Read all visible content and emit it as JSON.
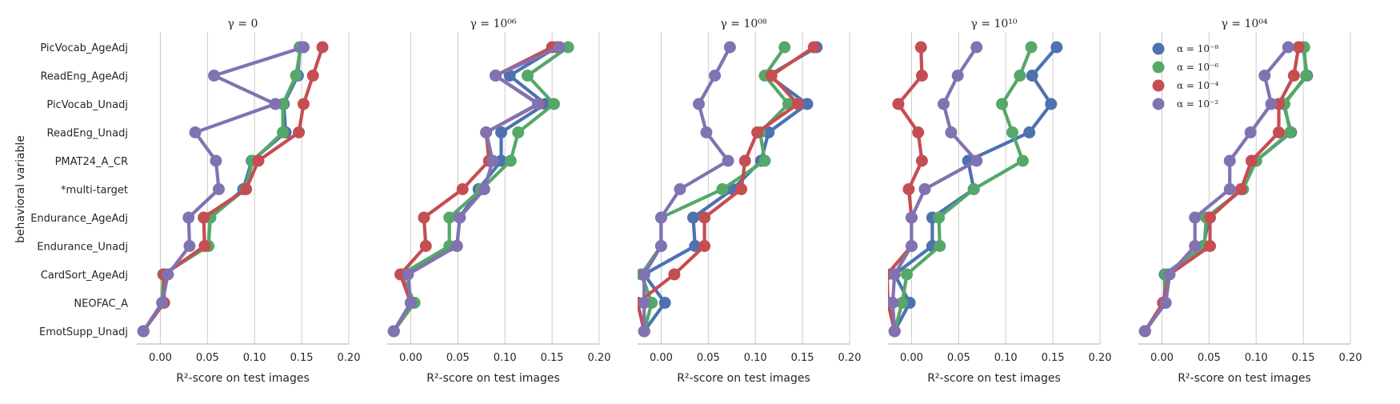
{
  "chart_data": {
    "type": "line",
    "y_axis_label": "behavioral variable",
    "x_axis_label": "R²-score on test images",
    "categories": [
      "PicVocab_AgeAdj",
      "ReadEng_AgeAdj",
      "PicVocab_Unadj",
      "ReadEng_Unadj",
      "PMAT24_A_CR",
      "*multi-target",
      "Endurance_AgeAdj",
      "Endurance_Unadj",
      "CardSort_AgeAdj",
      "NEOFAC_A",
      "EmotSupp_Unadj"
    ],
    "xlim": [
      -0.025,
      0.2
    ],
    "xticks": [
      "0.00",
      "0.05",
      "0.10",
      "0.15",
      "0.20"
    ],
    "grid": true,
    "legend": {
      "placement": "top-left of last panel",
      "entries": [
        "α = 10⁻⁸",
        "α = 10⁻⁶",
        "α = 10⁻⁴",
        "α = 10⁻²"
      ]
    },
    "series_colors": [
      "#4C72B0",
      "#55A868",
      "#C44E52",
      "#8172B2"
    ],
    "panels": [
      {
        "title": "γ = 0",
        "series": [
          {
            "name": "α = 10⁻⁸",
            "values": [
              0.148,
              0.146,
              0.131,
              0.133,
              0.097,
              0.088,
              0.053,
              0.051,
              0.003,
              0.002,
              -0.018
            ]
          },
          {
            "name": "α = 10⁻⁶",
            "values": [
              0.149,
              0.144,
              0.13,
              0.13,
              0.098,
              0.09,
              0.053,
              0.051,
              0.003,
              0.002,
              -0.018
            ]
          },
          {
            "name": "α = 10⁻⁴",
            "values": [
              0.172,
              0.162,
              0.152,
              0.147,
              0.104,
              0.091,
              0.046,
              0.047,
              0.004,
              0.004,
              -0.018
            ]
          },
          {
            "name": "α = 10⁻²",
            "values": [
              0.152,
              0.057,
              0.122,
              0.037,
              0.059,
              0.062,
              0.03,
              0.031,
              0.008,
              0.002,
              -0.018
            ]
          }
        ]
      },
      {
        "title": "γ = 10⁰⁶",
        "series": [
          {
            "name": "α = 10⁻⁸",
            "values": [
              0.155,
              0.105,
              0.143,
              0.096,
              0.096,
              0.072,
              0.052,
              0.049,
              -0.01,
              0.0,
              -0.018
            ]
          },
          {
            "name": "α = 10⁻⁶",
            "values": [
              0.167,
              0.124,
              0.152,
              0.114,
              0.106,
              0.075,
              0.041,
              0.041,
              -0.01,
              0.004,
              -0.018
            ]
          },
          {
            "name": "α = 10⁻⁴",
            "values": [
              0.15,
              0.09,
              0.136,
              0.08,
              0.083,
              0.055,
              0.014,
              0.016,
              -0.011,
              0.0,
              -0.018
            ]
          },
          {
            "name": "α = 10⁻²",
            "values": [
              0.158,
              0.09,
              0.135,
              0.08,
              0.087,
              0.078,
              0.052,
              0.049,
              -0.003,
              0.0,
              -0.018
            ]
          }
        ]
      },
      {
        "title": "γ = 10⁰⁸",
        "series": [
          {
            "name": "α = 10⁻⁸",
            "values": [
              0.165,
              0.114,
              0.155,
              0.114,
              0.106,
              0.076,
              0.034,
              0.036,
              -0.018,
              0.004,
              -0.018
            ]
          },
          {
            "name": "α = 10⁻⁶",
            "values": [
              0.131,
              0.11,
              0.135,
              0.105,
              0.11,
              0.065,
              0.0,
              0.0,
              -0.021,
              -0.01,
              -0.018
            ]
          },
          {
            "name": "α = 10⁻⁴",
            "values": [
              0.162,
              0.117,
              0.145,
              0.102,
              0.089,
              0.085,
              0.046,
              0.046,
              0.014,
              -0.025,
              -0.018
            ]
          },
          {
            "name": "α = 10⁻²",
            "values": [
              0.073,
              0.057,
              0.04,
              0.048,
              0.071,
              0.02,
              0.0,
              0.0,
              -0.018,
              -0.018,
              -0.018
            ]
          }
        ]
      },
      {
        "title": "γ = 10¹⁰",
        "series": [
          {
            "name": "α = 10⁻⁸",
            "values": [
              0.154,
              0.128,
              0.148,
              0.125,
              0.06,
              0.066,
              0.022,
              0.022,
              -0.018,
              -0.002,
              -0.018
            ]
          },
          {
            "name": "α = 10⁻⁶",
            "values": [
              0.127,
              0.115,
              0.096,
              0.107,
              0.118,
              0.066,
              0.029,
              0.03,
              -0.005,
              -0.01,
              -0.018
            ]
          },
          {
            "name": "α = 10⁻⁴",
            "values": [
              0.01,
              0.011,
              -0.014,
              0.007,
              0.011,
              -0.003,
              0.0,
              0.0,
              -0.026,
              -0.025,
              -0.018
            ]
          },
          {
            "name": "α = 10⁻²",
            "values": [
              0.069,
              0.049,
              0.034,
              0.042,
              0.069,
              0.014,
              0.0,
              0.0,
              -0.018,
              -0.02,
              -0.018
            ]
          }
        ]
      },
      {
        "title": "γ = 10⁰⁴",
        "series": [
          {
            "name": "α = 10⁻⁸",
            "values": [
              0.15,
              0.154,
              0.129,
              0.137,
              0.1,
              0.085,
              0.05,
              0.044,
              0.003,
              0.003,
              -0.018
            ]
          },
          {
            "name": "α = 10⁻⁶",
            "values": [
              0.151,
              0.153,
              0.13,
              0.136,
              0.1,
              0.086,
              0.047,
              0.045,
              0.004,
              0.003,
              -0.018
            ]
          },
          {
            "name": "α = 10⁻⁴",
            "values": [
              0.145,
              0.14,
              0.124,
              0.124,
              0.095,
              0.084,
              0.051,
              0.051,
              0.008,
              0.001,
              -0.018
            ]
          },
          {
            "name": "α = 10⁻²",
            "values": [
              0.134,
              0.109,
              0.116,
              0.094,
              0.072,
              0.072,
              0.035,
              0.035,
              0.008,
              0.004,
              -0.018
            ]
          }
        ]
      }
    ]
  }
}
